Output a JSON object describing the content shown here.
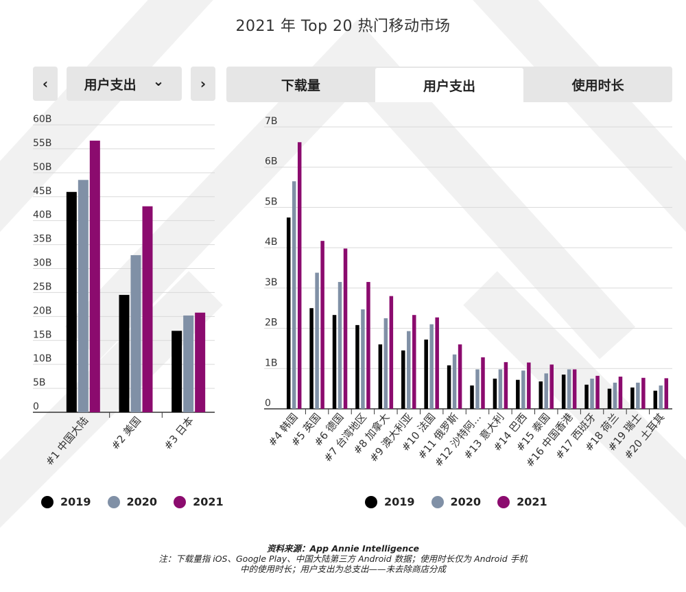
{
  "title": "2021 年 Top 20 热门移动市场",
  "nav": {
    "prev_icon": "‹",
    "next_icon": "›",
    "dropdown_label": "用户支出",
    "dropdown_icon": "⌄"
  },
  "tabs": [
    {
      "label": "下载量",
      "active": false
    },
    {
      "label": "用户支出",
      "active": true
    },
    {
      "label": "使用时长",
      "active": false
    }
  ],
  "colors": {
    "2019": "#000000",
    "2020": "#8090a6",
    "2021": "#8b0b6e",
    "grid": "#d9d9d9"
  },
  "legend": [
    {
      "label": "2019",
      "color": "#000000"
    },
    {
      "label": "2020",
      "color": "#8090a6"
    },
    {
      "label": "2021",
      "color": "#8b0b6e"
    }
  ],
  "chart_data": [
    {
      "type": "bar",
      "categories": [
        "#1 中国大陆",
        "#2 美国",
        "#3 日本"
      ],
      "series": [
        {
          "name": "2019",
          "values": [
            46,
            24.5,
            17
          ]
        },
        {
          "name": "2020",
          "values": [
            48.5,
            32.8,
            20.2
          ]
        },
        {
          "name": "2021",
          "values": [
            56.7,
            43,
            20.8
          ]
        }
      ],
      "ylim": [
        0,
        60
      ],
      "yticks": [
        "0",
        "5B",
        "10B",
        "15B",
        "20B",
        "25B",
        "30B",
        "35B",
        "40B",
        "45B",
        "50B",
        "55B",
        "60B"
      ],
      "grid": true
    },
    {
      "type": "bar",
      "categories": [
        "#4 韩国",
        "#5 英国",
        "#6 德国",
        "#7 台湾地区",
        "#8 加拿大",
        "#9 澳大利亚",
        "#10 法国",
        "#11 俄罗斯",
        "#12 沙特阿...",
        "#13 意大利",
        "#14 巴西",
        "#15 泰国",
        "#16 中国香港",
        "#17 西班牙",
        "#18 荷兰",
        "#19 瑞士",
        "#20 土耳其"
      ],
      "series": [
        {
          "name": "2019",
          "values": [
            4.75,
            2.5,
            2.33,
            2.08,
            1.6,
            1.45,
            1.72,
            1.08,
            0.58,
            0.75,
            0.72,
            0.68,
            0.85,
            0.6,
            0.5,
            0.53,
            0.45
          ]
        },
        {
          "name": "2020",
          "values": [
            5.65,
            3.38,
            3.15,
            2.47,
            2.25,
            1.93,
            2.1,
            1.35,
            0.98,
            0.98,
            0.95,
            0.88,
            0.98,
            0.75,
            0.65,
            0.65,
            0.58
          ]
        },
        {
          "name": "2021",
          "values": [
            6.62,
            4.17,
            3.98,
            3.15,
            2.8,
            2.33,
            2.27,
            1.6,
            1.28,
            1.16,
            1.15,
            1.1,
            0.98,
            0.82,
            0.8,
            0.77,
            0.76
          ]
        }
      ],
      "ylim": [
        0,
        7
      ],
      "yticks": [
        "0",
        "1B",
        "2B",
        "3B",
        "4B",
        "5B",
        "6B",
        "7B"
      ],
      "grid": true
    }
  ],
  "footer": {
    "source": "资料来源：App Annie Intelligence",
    "note_line1": "注：下载量指 iOS、Google Play、中国大陆第三方 Android 数据；使用时长仅为 Android 手机",
    "note_line2": "中的使用时长；用户支出为总支出——未去除商店分成"
  }
}
